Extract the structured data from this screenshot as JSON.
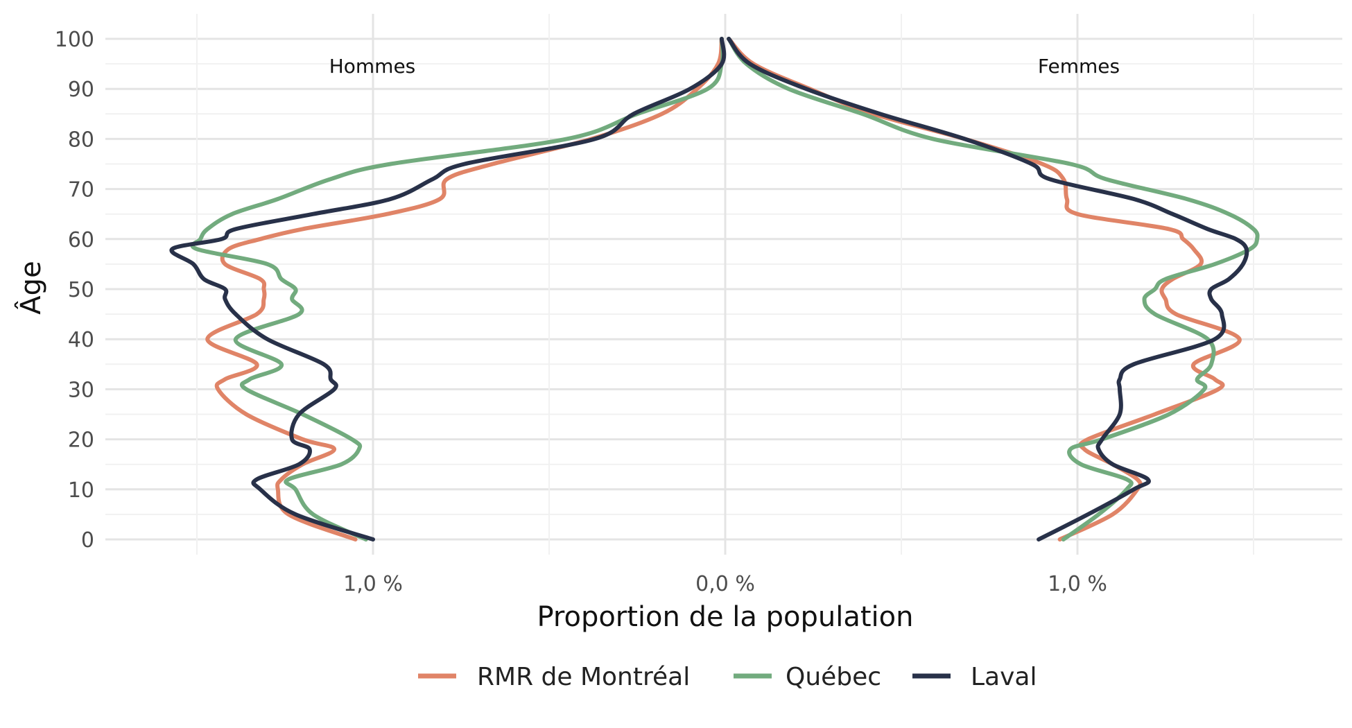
{
  "chart_data": {
    "type": "line",
    "subtype": "population-pyramid",
    "xlabel": "Proportion de la population",
    "ylabel": "Âge",
    "x_tick_labels": [
      "1,0 %",
      "0,0 %",
      "1,0 %"
    ],
    "x_ticks": [
      -1.0,
      0.0,
      1.0
    ],
    "xlim": [
      -1.75,
      1.75
    ],
    "ylim": [
      -4,
      103
    ],
    "y_ticks": [
      0,
      10,
      20,
      30,
      40,
      50,
      60,
      70,
      80,
      90,
      100
    ],
    "panel_labels": {
      "left": "Hommes",
      "right": "Femmes"
    },
    "grid": true,
    "legend_position": "bottom",
    "ages": [
      0,
      5,
      10,
      12,
      15,
      18,
      20,
      25,
      30,
      32,
      35,
      40,
      45,
      48,
      50,
      52,
      55,
      58,
      60,
      62,
      65,
      68,
      72,
      75,
      80,
      85,
      90,
      95,
      100
    ],
    "series": [
      {
        "name": "RMR de Montréal",
        "color": "#E08467",
        "hommes": [
          -1.05,
          -1.24,
          -1.27,
          -1.26,
          -1.2,
          -1.11,
          -1.2,
          -1.36,
          -1.44,
          -1.42,
          -1.33,
          -1.47,
          -1.33,
          -1.31,
          -1.31,
          -1.32,
          -1.42,
          -1.41,
          -1.32,
          -1.2,
          -0.96,
          -0.81,
          -0.79,
          -0.66,
          -0.38,
          -0.18,
          -0.08,
          -0.02,
          -0.01
        ],
        "femmes": [
          0.95,
          1.1,
          1.17,
          1.17,
          1.1,
          1.02,
          1.03,
          1.22,
          1.4,
          1.39,
          1.33,
          1.46,
          1.28,
          1.25,
          1.24,
          1.27,
          1.35,
          1.33,
          1.3,
          1.26,
          1.0,
          0.97,
          0.96,
          0.9,
          0.68,
          0.42,
          0.24,
          0.08,
          0.01
        ]
      },
      {
        "name": "Québec",
        "color": "#72AB7E",
        "hommes": [
          -1.02,
          -1.17,
          -1.22,
          -1.24,
          -1.09,
          -1.04,
          -1.06,
          -1.2,
          -1.36,
          -1.35,
          -1.26,
          -1.39,
          -1.21,
          -1.23,
          -1.22,
          -1.26,
          -1.3,
          -1.5,
          -1.49,
          -1.47,
          -1.4,
          -1.27,
          -1.12,
          -0.95,
          -0.45,
          -0.25,
          -0.05,
          -0.01,
          -0.01
        ],
        "femmes": [
          0.96,
          1.06,
          1.14,
          1.14,
          1.01,
          0.98,
          1.07,
          1.26,
          1.36,
          1.34,
          1.38,
          1.37,
          1.22,
          1.19,
          1.22,
          1.25,
          1.39,
          1.49,
          1.51,
          1.5,
          1.43,
          1.31,
          1.08,
          0.98,
          0.59,
          0.39,
          0.18,
          0.06,
          0.01
        ]
      },
      {
        "name": "Laval",
        "color": "#283149",
        "hommes": [
          -1.0,
          -1.22,
          -1.32,
          -1.33,
          -1.21,
          -1.18,
          -1.23,
          -1.21,
          -1.11,
          -1.12,
          -1.14,
          -1.3,
          -1.39,
          -1.42,
          -1.42,
          -1.48,
          -1.51,
          -1.57,
          -1.43,
          -1.39,
          -1.17,
          -0.95,
          -0.83,
          -0.74,
          -0.37,
          -0.26,
          -0.1,
          -0.01,
          -0.01
        ],
        "femmes": [
          0.89,
          1.03,
          1.16,
          1.2,
          1.1,
          1.06,
          1.07,
          1.12,
          1.12,
          1.12,
          1.16,
          1.39,
          1.41,
          1.38,
          1.38,
          1.43,
          1.47,
          1.48,
          1.45,
          1.37,
          1.27,
          1.16,
          0.92,
          0.87,
          0.68,
          0.44,
          0.23,
          0.07,
          0.01
        ]
      }
    ]
  }
}
